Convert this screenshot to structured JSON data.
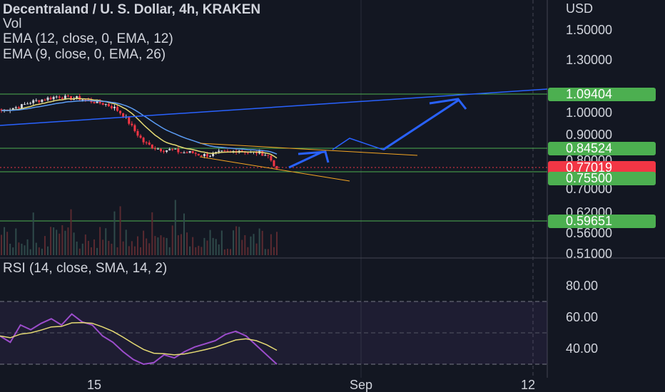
{
  "header": {
    "title": "Decentraland / U. S. Dollar, 4h, KRAKEN",
    "vol_label": "Vol",
    "ema1_label": "EMA (12, close, 0, EMA, 12)",
    "ema2_label": "EMA (9, close, 0, EMA, 26)"
  },
  "price_pane": {
    "currency": "USD",
    "axis_ticks": [
      "1.50000",
      "1.30000",
      "1.00000",
      "0.90000",
      "0.80000",
      "0.70000",
      "0.62000",
      "0.56000",
      "0.51000"
    ],
    "price_tags": [
      {
        "label": "1.09404",
        "color": "#4caf50"
      },
      {
        "label": "0.84524",
        "color": "#4caf50"
      },
      {
        "label": "0.77019",
        "color": "#f23645"
      },
      {
        "label": "0.75500",
        "color": "#4caf50"
      },
      {
        "label": "0.59651",
        "color": "#4caf50"
      }
    ]
  },
  "rsi_pane": {
    "label": "RSI (14, close, SMA, 14, 2)",
    "axis_ticks": [
      "80.00",
      "60.00",
      "40.00"
    ]
  },
  "time_axis": {
    "ticks": [
      "15",
      "Sep",
      "12"
    ]
  },
  "colors": {
    "background": "#131722",
    "up_candle": "#d1d4dc",
    "down_candle": "#f23645",
    "horizontal_levels": "#4caf50",
    "trendline": "#2962ff",
    "wedge": "#f5a623",
    "projection_arrow": "#2962ff",
    "rsi_line": "#9c4dcc",
    "rsi_signal": "#e6db74"
  },
  "chart_data": {
    "type": "candlestick",
    "symbol": "Decentraland / U. S. Dollar",
    "interval": "4h",
    "exchange": "KRAKEN",
    "scale": "log",
    "horizontal_levels": [
      1.09404,
      0.84524,
      0.755,
      0.59651
    ],
    "last_price": 0.77019,
    "closes_sampled": [
      1.01,
      1.02,
      1.03,
      1.05,
      1.06,
      1.07,
      1.08,
      1.07,
      1.07,
      1.06,
      1.05,
      1.04,
      1.02,
      0.98,
      0.92,
      0.87,
      0.85,
      0.84,
      0.84,
      0.83,
      0.83,
      0.82,
      0.82,
      0.83,
      0.83,
      0.84,
      0.83,
      0.83,
      0.82,
      0.77
    ],
    "rsi_sampled": [
      48,
      44,
      55,
      52,
      56,
      59,
      55,
      62,
      57,
      55,
      48,
      44,
      38,
      33,
      30,
      31,
      36,
      34,
      38,
      41,
      43,
      45,
      49,
      51,
      48,
      42,
      36,
      30
    ],
    "rsi_levels": [
      70,
      50,
      30
    ]
  }
}
